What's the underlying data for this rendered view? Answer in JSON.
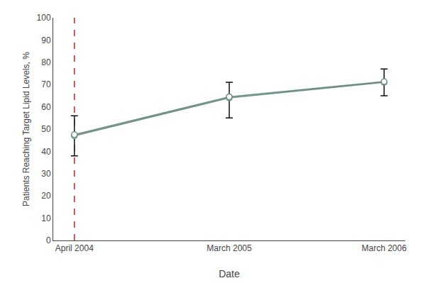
{
  "chart_data": {
    "type": "line",
    "xlabel": "Date",
    "ylabel": "Patients Reaching Target Lipid Levels, %",
    "categories": [
      "April 2004",
      "March 2005",
      "March 2006"
    ],
    "series": [
      {
        "color": "#6b8e7f",
        "marker": "open circle",
        "values": [
          47,
          64,
          71
        ],
        "error_lower": [
          9,
          9,
          6
        ],
        "error_upper": [
          9,
          7,
          6
        ],
        "error_color": "#111111"
      },
      {
        "color": "#6b8e7f",
        "marker": "open circle",
        "values": [
          47.5,
          64.5,
          71.3
        ]
      }
    ],
    "reference_line": {
      "x": "April 2004",
      "color": "#cc2222",
      "line_style": "dashed"
    },
    "ylim": [
      0,
      100
    ],
    "yticks": [
      0,
      10,
      20,
      30,
      40,
      50,
      60,
      70,
      80,
      90,
      100
    ],
    "grid": false,
    "legend": false
  }
}
